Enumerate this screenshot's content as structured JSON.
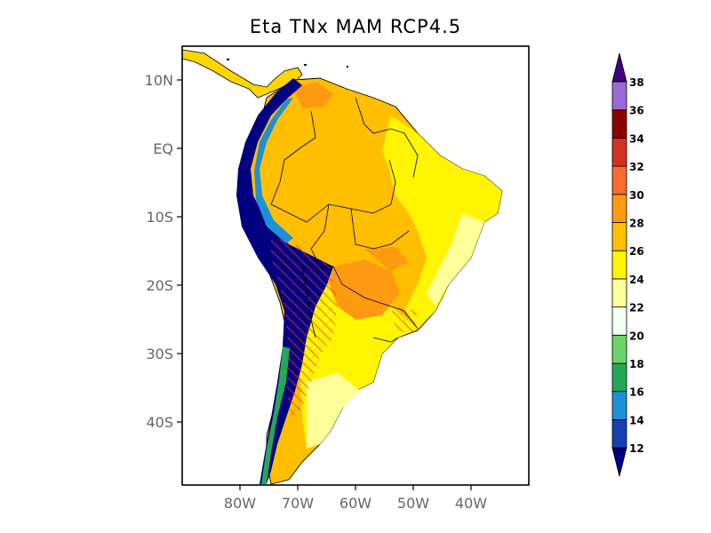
{
  "title": "Eta TNx MAM RCP4.5",
  "chart_data": {
    "type": "heatmap",
    "title": "Eta TNx MAM RCP4.5",
    "y_ticks": [
      {
        "lat": 10,
        "label": "10N"
      },
      {
        "lat": 0,
        "label": "EQ"
      },
      {
        "lat": -10,
        "label": "10S"
      },
      {
        "lat": -20,
        "label": "20S"
      },
      {
        "lat": -30,
        "label": "30S"
      },
      {
        "lat": -40,
        "label": "40S"
      }
    ],
    "x_ticks": [
      {
        "lon": -80,
        "label": "80W"
      },
      {
        "lon": -70,
        "label": "70W"
      },
      {
        "lon": -60,
        "label": "60W"
      },
      {
        "lon": -50,
        "label": "50W"
      },
      {
        "lon": -40,
        "label": "40W"
      }
    ],
    "lon_range": [
      -90,
      -30
    ],
    "lat_range": [
      -50,
      15
    ],
    "colorbar": {
      "labels": [
        "12",
        "14",
        "16",
        "18",
        "20",
        "22",
        "24",
        "26",
        "28",
        "30",
        "32",
        "34",
        "36",
        "38"
      ],
      "colors": [
        "#1a3fb0",
        "#1e90d8",
        "#24a855",
        "#6cd468",
        "#f2fff2",
        "#ffff99",
        "#fff500",
        "#ffbf00",
        "#ff9910",
        "#ff6a30",
        "#d63020",
        "#8c0000",
        "#9a6ad8",
        "#400080"
      ],
      "under_color": "#000080",
      "over_color": "#400080"
    }
  }
}
